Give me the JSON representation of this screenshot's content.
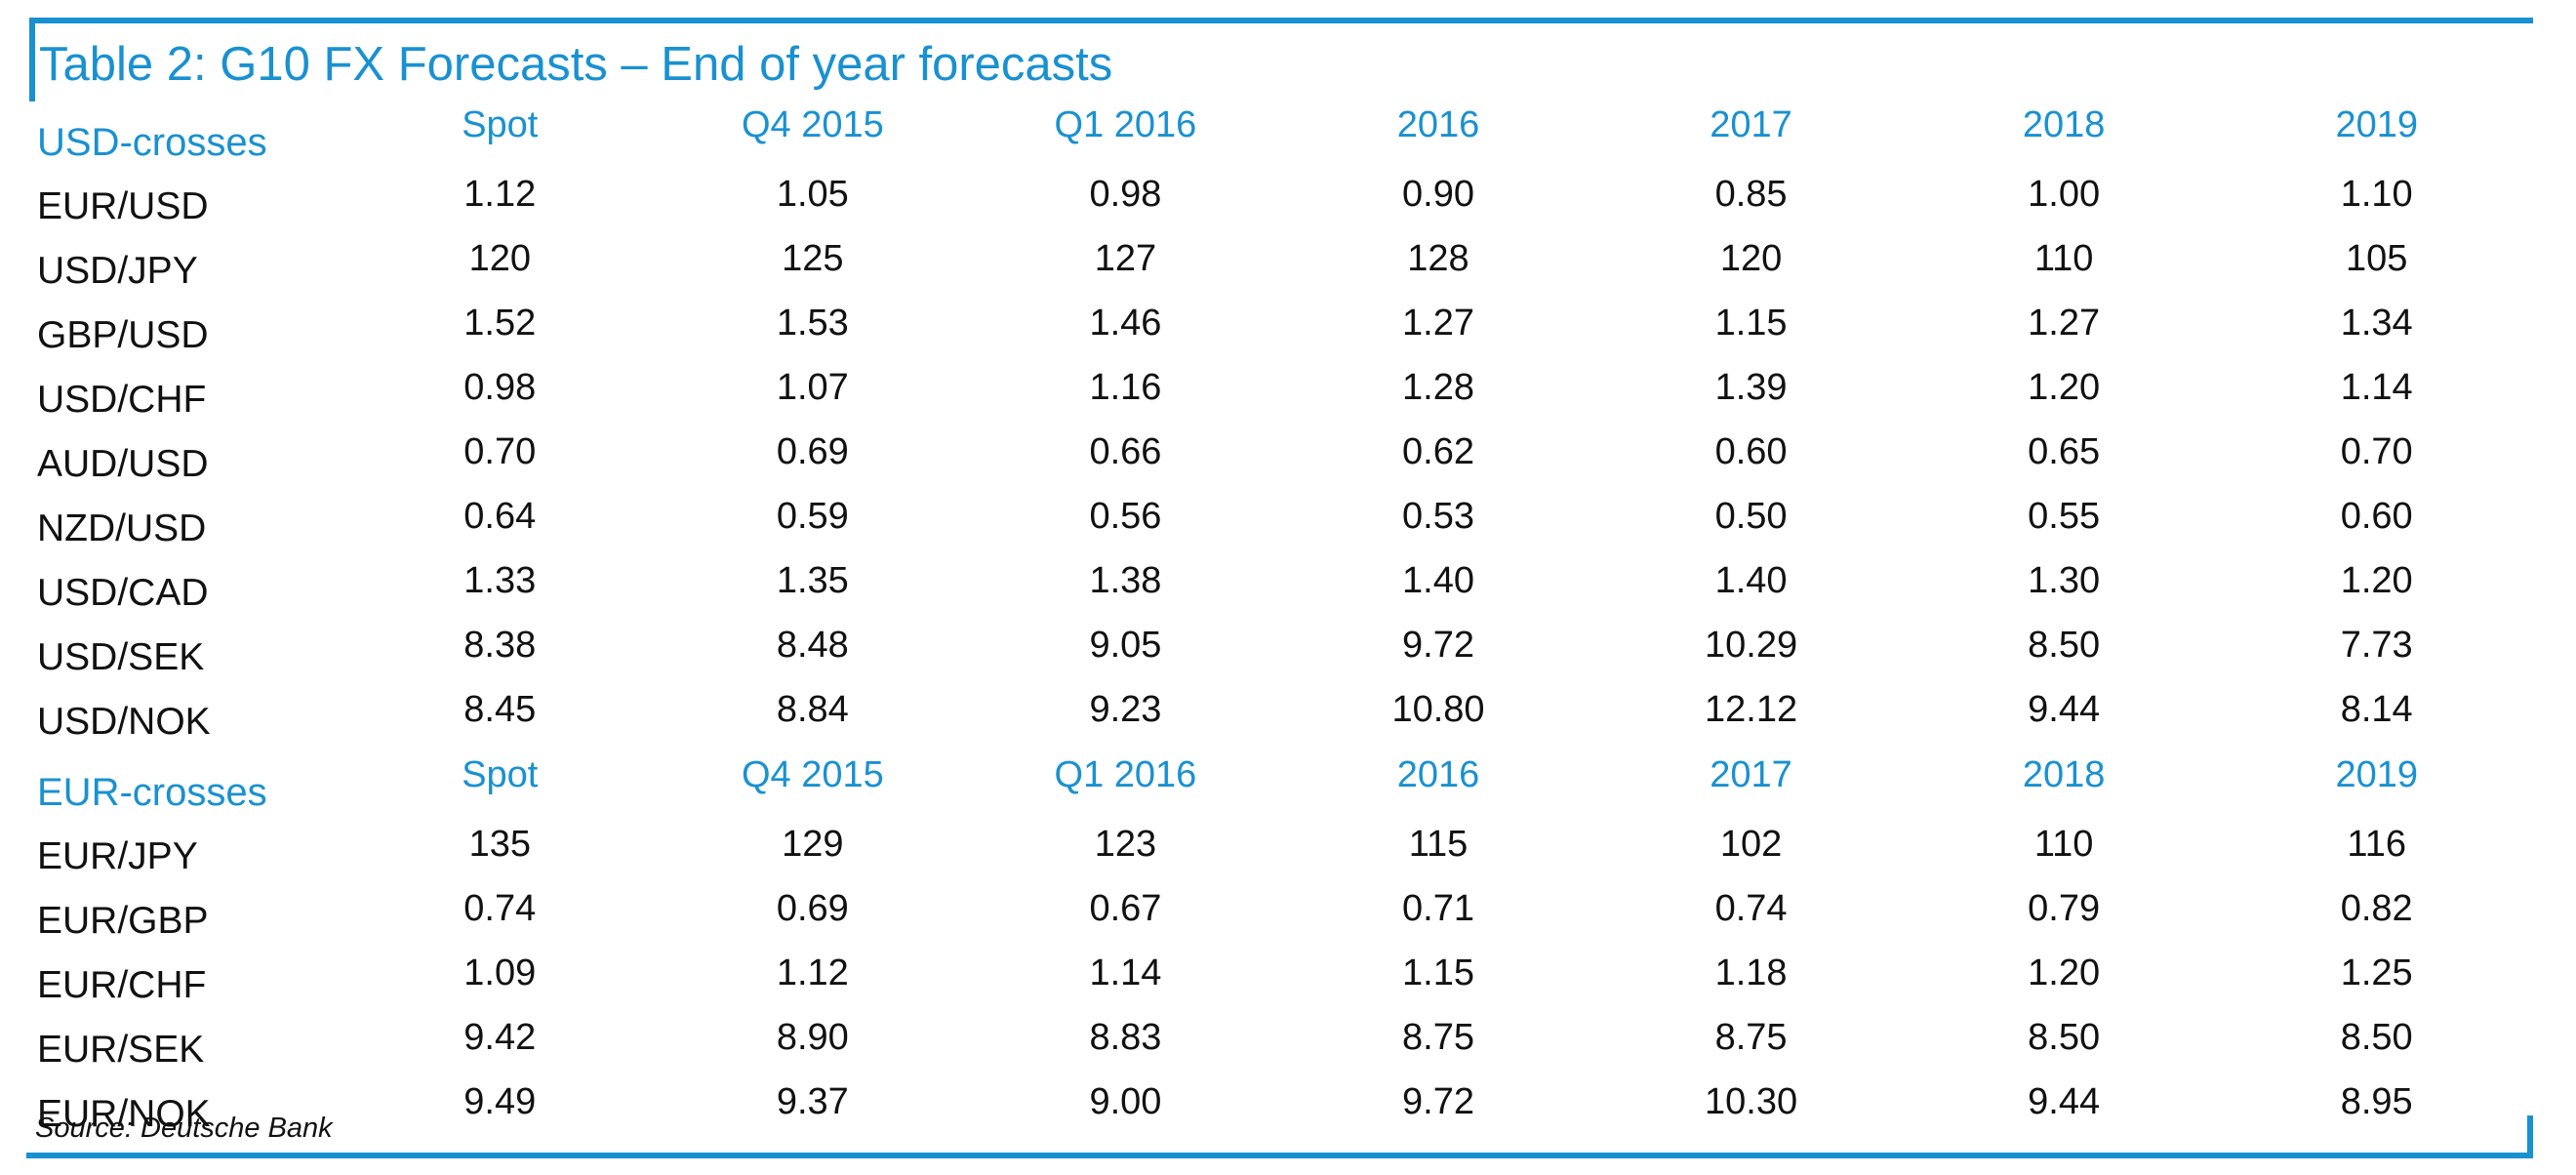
{
  "colors": {
    "accent": "#1991d1",
    "text": "#111111"
  },
  "table": {
    "title": "Table 2: G10 FX Forecasts – End of year forecasts",
    "source": "Source: Deutsche Bank",
    "columns": [
      "Spot",
      "Q4 2015",
      "Q1 2016",
      "2016",
      "2017",
      "2018",
      "2019"
    ],
    "sections": [
      {
        "label": "USD-crosses",
        "rows": [
          {
            "pair": "EUR/USD",
            "values": [
              "1.12",
              "1.05",
              "0.98",
              "0.90",
              "0.85",
              "1.00",
              "1.10"
            ]
          },
          {
            "pair": "USD/JPY",
            "values": [
              "120",
              "125",
              "127",
              "128",
              "120",
              "110",
              "105"
            ]
          },
          {
            "pair": "GBP/USD",
            "values": [
              "1.52",
              "1.53",
              "1.46",
              "1.27",
              "1.15",
              "1.27",
              "1.34"
            ]
          },
          {
            "pair": "USD/CHF",
            "values": [
              "0.98",
              "1.07",
              "1.16",
              "1.28",
              "1.39",
              "1.20",
              "1.14"
            ]
          },
          {
            "pair": "AUD/USD",
            "values": [
              "0.70",
              "0.69",
              "0.66",
              "0.62",
              "0.60",
              "0.65",
              "0.70"
            ]
          },
          {
            "pair": "NZD/USD",
            "values": [
              "0.64",
              "0.59",
              "0.56",
              "0.53",
              "0.50",
              "0.55",
              "0.60"
            ]
          },
          {
            "pair": "USD/CAD",
            "values": [
              "1.33",
              "1.35",
              "1.38",
              "1.40",
              "1.40",
              "1.30",
              "1.20"
            ]
          },
          {
            "pair": "USD/SEK",
            "values": [
              "8.38",
              "8.48",
              "9.05",
              "9.72",
              "10.29",
              "8.50",
              "7.73"
            ]
          },
          {
            "pair": "USD/NOK",
            "values": [
              "8.45",
              "8.84",
              "9.23",
              "10.80",
              "12.12",
              "9.44",
              "8.14"
            ]
          }
        ]
      },
      {
        "label": "EUR-crosses",
        "rows": [
          {
            "pair": "EUR/JPY",
            "values": [
              "135",
              "129",
              "123",
              "115",
              "102",
              "110",
              "116"
            ]
          },
          {
            "pair": "EUR/GBP",
            "values": [
              "0.74",
              "0.69",
              "0.67",
              "0.71",
              "0.74",
              "0.79",
              "0.82"
            ]
          },
          {
            "pair": "EUR/CHF",
            "values": [
              "1.09",
              "1.12",
              "1.14",
              "1.15",
              "1.18",
              "1.20",
              "1.25"
            ]
          },
          {
            "pair": "EUR/SEK",
            "values": [
              "9.42",
              "8.90",
              "8.83",
              "8.75",
              "8.75",
              "8.50",
              "8.50"
            ]
          },
          {
            "pair": "EUR/NOK",
            "values": [
              "9.49",
              "9.37",
              "9.00",
              "9.72",
              "10.30",
              "9.44",
              "8.95"
            ]
          }
        ]
      }
    ]
  }
}
